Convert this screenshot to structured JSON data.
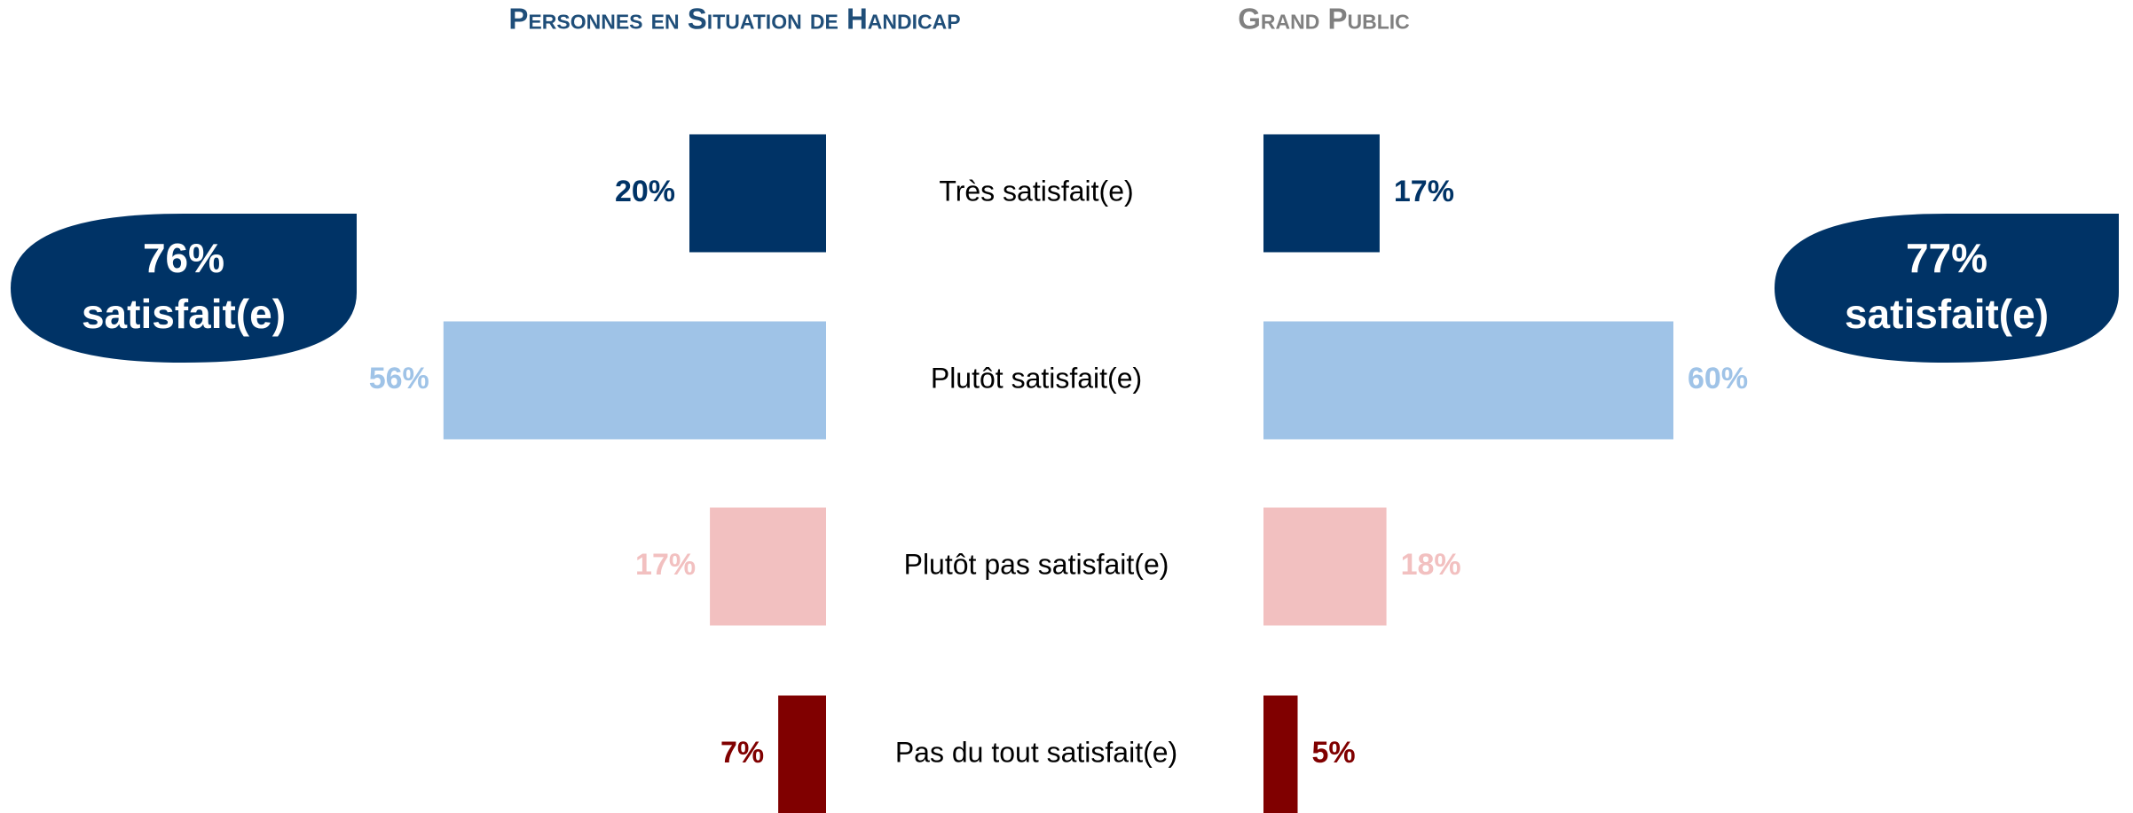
{
  "chart_data": {
    "type": "butterfly-bar",
    "categories": [
      "Très satisfait(e)",
      "Plutôt satisfait(e)",
      "Plutôt pas satisfait(e)",
      "Pas du tout satisfait(e)"
    ],
    "colors": [
      "#003366",
      "#9fc3e7",
      "#f2c0c0",
      "#800000"
    ],
    "series": [
      {
        "name": "Personnes en Situation de Handicap",
        "color": "#1f4e79",
        "values": [
          20,
          56,
          17,
          7
        ],
        "value_labels": [
          "20%",
          "56%",
          "17%",
          "7%"
        ],
        "summary": [
          "76%",
          "satisfait(e)"
        ]
      },
      {
        "name": "Grand Public",
        "color": "#808080",
        "values": [
          17,
          60,
          18,
          5
        ],
        "value_labels": [
          "17%",
          "60%",
          "18%",
          "5%"
        ],
        "summary": [
          "77%",
          "satisfait(e)"
        ]
      }
    ]
  }
}
